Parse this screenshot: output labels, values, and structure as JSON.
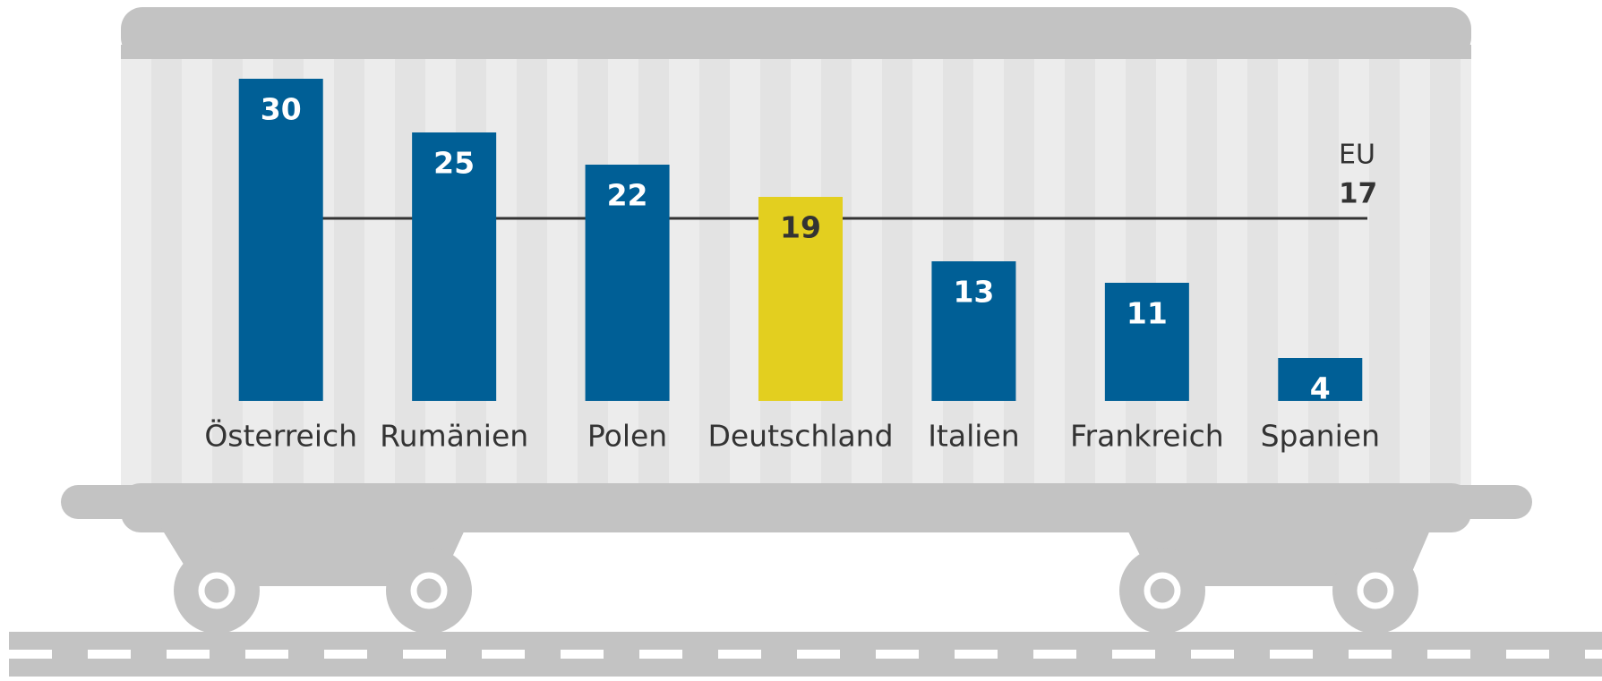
{
  "chart_data": {
    "type": "bar",
    "categories": [
      "Österreich",
      "Rumänien",
      "Polen",
      "Deutschland",
      "Italien",
      "Frankreich",
      "Spanien"
    ],
    "values": [
      30,
      25,
      22,
      19,
      13,
      11,
      4
    ],
    "colors": [
      "#005f96",
      "#005f96",
      "#005f96",
      "#e3cf1f",
      "#005f96",
      "#005f96",
      "#005f96"
    ],
    "ylim": [
      0,
      30
    ],
    "reference": {
      "label": "EU",
      "value": 17,
      "color": "#333333"
    }
  }
}
